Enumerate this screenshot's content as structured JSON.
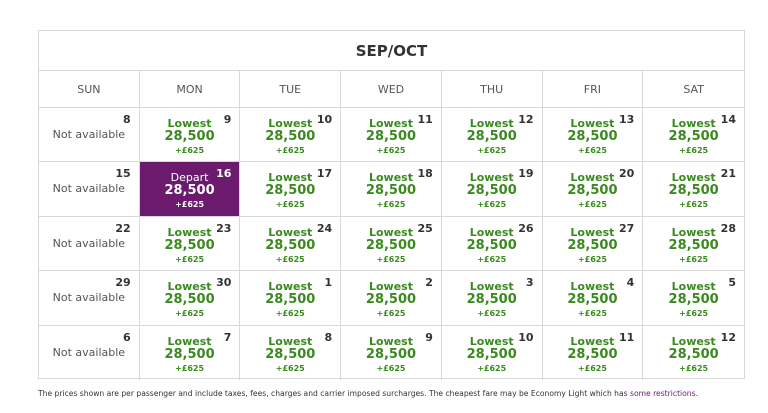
{
  "header": {
    "title": "SEP/OCT"
  },
  "days": [
    "SUN",
    "MON",
    "TUE",
    "WED",
    "THU",
    "FRI",
    "SAT"
  ],
  "weeks": [
    [
      {
        "day": 8,
        "status": "Not available"
      },
      {
        "day": 9,
        "label": "Lowest",
        "price": "28,500",
        "fee": "+£625"
      },
      {
        "day": 10,
        "label": "Lowest",
        "price": "28,500",
        "fee": "+£625"
      },
      {
        "day": 11,
        "label": "Lowest",
        "price": "28,500",
        "fee": "+£625"
      },
      {
        "day": 12,
        "label": "Lowest",
        "price": "28,500",
        "fee": "+£625"
      },
      {
        "day": 13,
        "label": "Lowest",
        "price": "28,500",
        "fee": "+£625"
      },
      {
        "day": 14,
        "label": "Lowest",
        "price": "28,500",
        "fee": "+£625"
      }
    ],
    [
      {
        "day": 15,
        "status": "Not available"
      },
      {
        "day": 16,
        "label": "Depart",
        "price": "28,500",
        "fee": "+£625",
        "selected": true
      },
      {
        "day": 17,
        "label": "Lowest",
        "price": "28,500",
        "fee": "+£625"
      },
      {
        "day": 18,
        "label": "Lowest",
        "price": "28,500",
        "fee": "+£625"
      },
      {
        "day": 19,
        "label": "Lowest",
        "price": "28,500",
        "fee": "+£625"
      },
      {
        "day": 20,
        "label": "Lowest",
        "price": "28,500",
        "fee": "+£625"
      },
      {
        "day": 21,
        "label": "Lowest",
        "price": "28,500",
        "fee": "+£625"
      }
    ],
    [
      {
        "day": 22,
        "status": "Not available"
      },
      {
        "day": 23,
        "label": "Lowest",
        "price": "28,500",
        "fee": "+£625"
      },
      {
        "day": 24,
        "label": "Lowest",
        "price": "28,500",
        "fee": "+£625"
      },
      {
        "day": 25,
        "label": "Lowest",
        "price": "28,500",
        "fee": "+£625"
      },
      {
        "day": 26,
        "label": "Lowest",
        "price": "28,500",
        "fee": "+£625"
      },
      {
        "day": 27,
        "label": "Lowest",
        "price": "28,500",
        "fee": "+£625"
      },
      {
        "day": 28,
        "label": "Lowest",
        "price": "28,500",
        "fee": "+£625"
      }
    ],
    [
      {
        "day": 29,
        "status": "Not available"
      },
      {
        "day": 30,
        "label": "Lowest",
        "price": "28,500",
        "fee": "+£625"
      },
      {
        "day": 1,
        "label": "Lowest",
        "price": "28,500",
        "fee": "+£625"
      },
      {
        "day": 2,
        "label": "Lowest",
        "price": "28,500",
        "fee": "+£625"
      },
      {
        "day": 3,
        "label": "Lowest",
        "price": "28,500",
        "fee": "+£625"
      },
      {
        "day": 4,
        "label": "Lowest",
        "price": "28,500",
        "fee": "+£625"
      },
      {
        "day": 5,
        "label": "Lowest",
        "price": "28,500",
        "fee": "+£625"
      }
    ],
    [
      {
        "day": 6,
        "status": "Not available"
      },
      {
        "day": 7,
        "label": "Lowest",
        "price": "28,500",
        "fee": "+£625"
      },
      {
        "day": 8,
        "label": "Lowest",
        "price": "28,500",
        "fee": "+£625"
      },
      {
        "day": 9,
        "label": "Lowest",
        "price": "28,500",
        "fee": "+£625"
      },
      {
        "day": 10,
        "label": "Lowest",
        "price": "28,500",
        "fee": "+£625"
      },
      {
        "day": 11,
        "label": "Lowest",
        "price": "28,500",
        "fee": "+£625"
      },
      {
        "day": 12,
        "label": "Lowest",
        "price": "28,500",
        "fee": "+£625"
      }
    ]
  ],
  "footer": {
    "text": "The prices shown are per passenger and include taxes, fees, charges and carrier imposed surcharges. The cheapest fare may be Economy Light which has ",
    "link": "some restrictions",
    "end": "."
  }
}
